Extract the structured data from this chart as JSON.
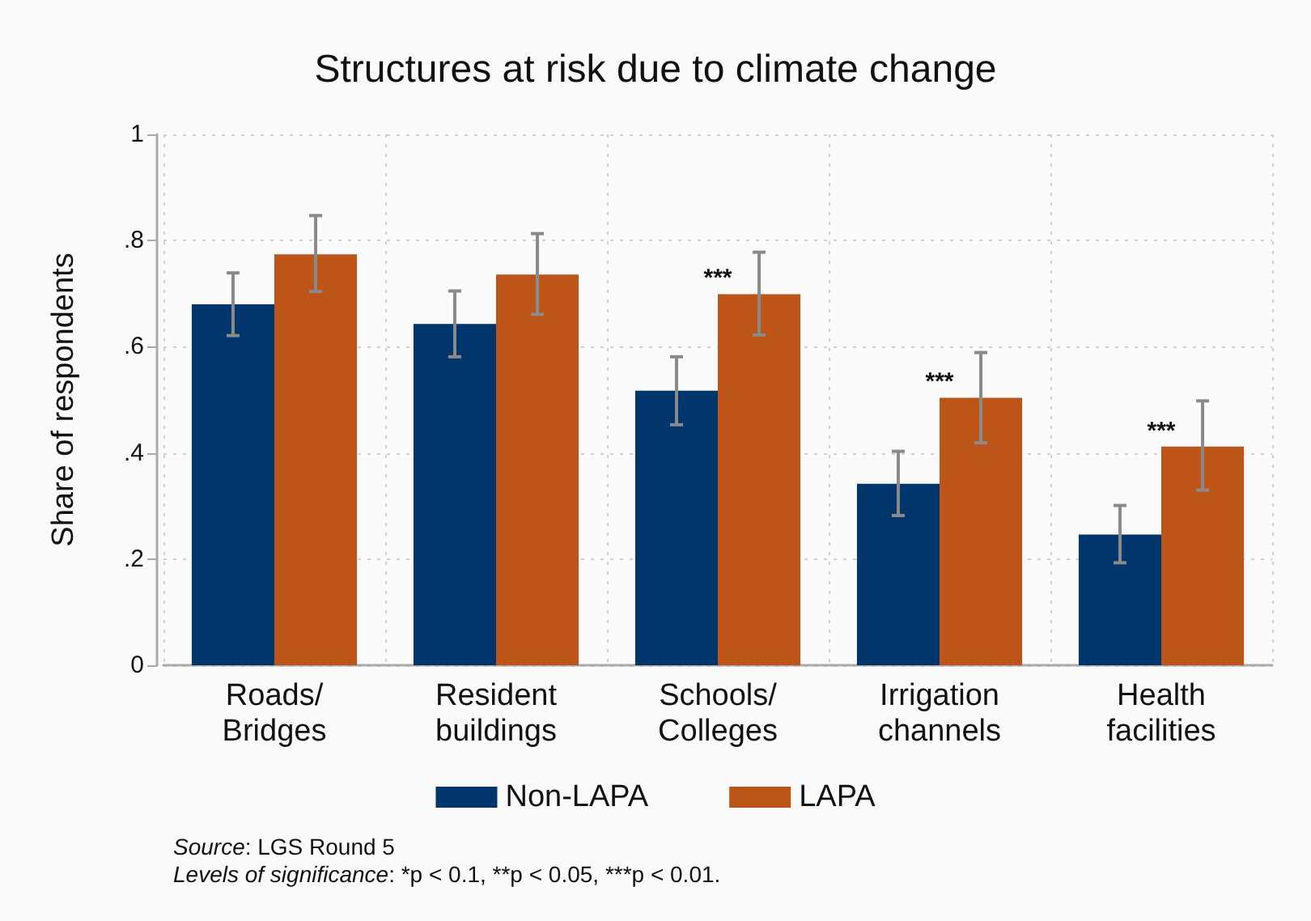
{
  "chart_data": {
    "type": "bar",
    "title": "Structures at risk due to climate change",
    "ylabel": "Share of respondents",
    "categories": [
      "Roads/\nBridges",
      "Resident\nbuildings",
      "Schools/\nColleges",
      "Irrigation\nchannels",
      "Health\nfacilities"
    ],
    "series": [
      {
        "name": "Non-LAPA",
        "color": "#00366b",
        "values": [
          0.68,
          0.643,
          0.517,
          0.342,
          0.246
        ],
        "errors": [
          [
            0.621,
            0.739
          ],
          [
            0.581,
            0.705
          ],
          [
            0.453,
            0.581
          ],
          [
            0.282,
            0.403
          ],
          [
            0.193,
            0.301
          ]
        ]
      },
      {
        "name": "LAPA",
        "color": "#bd5519",
        "values": [
          0.774,
          0.736,
          0.699,
          0.504,
          0.412
        ],
        "errors": [
          [
            0.704,
            0.847
          ],
          [
            0.661,
            0.813
          ],
          [
            0.622,
            0.778
          ],
          [
            0.419,
            0.589
          ],
          [
            0.33,
            0.498
          ]
        ]
      }
    ],
    "ylim": [
      0,
      1
    ],
    "yticks": [
      0,
      {
        "value": 0.2,
        "label": ".2"
      },
      {
        "value": 0.4,
        "label": ".4"
      },
      {
        "value": 0.6,
        "label": ".6"
      },
      {
        "value": 0.8,
        "label": ".8"
      },
      1
    ],
    "grid": true,
    "legend": "bottom",
    "annotations": [
      {
        "text": "***",
        "x": "Schools/\nColleges",
        "y": 0.699
      },
      {
        "text": "***",
        "x": "Irrigation\nchannels",
        "y": 0.504
      },
      {
        "text": "***",
        "x": "Health\nfacilities",
        "y": 0.412
      },
      "Source: LGS Round 5",
      "Levels of significance: *p < 0.1, **p < 0.05, ***p < 0.01."
    ]
  }
}
